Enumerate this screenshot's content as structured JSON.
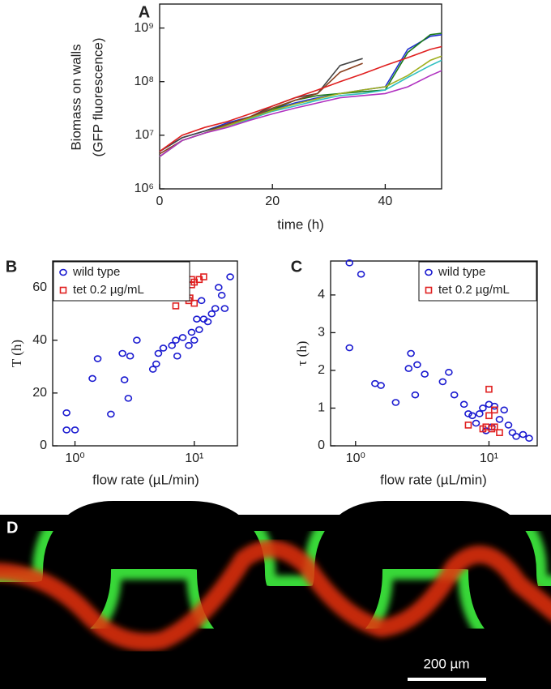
{
  "chart_data": [
    {
      "type": "line",
      "panel_label": "A",
      "ylabel": [
        "Biomass on walls",
        "(GFP fluorescence)"
      ],
      "xlabel": "time (h)",
      "yscale": "log",
      "grid": false,
      "x": [
        0,
        4,
        8,
        12,
        16,
        20,
        24,
        28,
        32,
        36,
        40,
        44,
        48,
        50
      ],
      "xlim": [
        0,
        50
      ],
      "xticks": [
        0,
        20,
        40
      ],
      "ylim": [
        1000000,
        2800000000
      ],
      "yticks": [
        {
          "value": 1000000,
          "label": "10⁶"
        },
        {
          "value": 10000000,
          "label": "10⁷"
        },
        {
          "value": 100000000,
          "label": "10⁸"
        },
        {
          "value": 1000000000,
          "label": "10⁹"
        }
      ],
      "series": [
        {
          "color": "#2030d0",
          "values": [
            5000000,
            9000000,
            12000000,
            17000000,
            22000000,
            30000000,
            40000000,
            50000000,
            60000000,
            70000000,
            80000000,
            400000000,
            700000000,
            750000000
          ]
        },
        {
          "color": "#1a7a1a",
          "values": [
            4000000,
            8000000,
            11000000,
            15000000,
            20000000,
            30000000,
            45000000,
            55000000,
            60000000,
            65000000,
            70000000,
            350000000,
            750000000,
            800000000
          ]
        },
        {
          "color": "#444444",
          "values": [
            5000000,
            9000000,
            12000000,
            16000000,
            22000000,
            35000000,
            50000000,
            60000000,
            200000000,
            270000000,
            null,
            null,
            null,
            null
          ]
        },
        {
          "color": "#8a4020",
          "values": [
            4500000,
            8000000,
            11000000,
            16000000,
            22000000,
            32000000,
            45000000,
            60000000,
            150000000,
            220000000,
            null,
            null,
            null,
            null
          ]
        },
        {
          "color": "#e02020",
          "values": [
            5000000,
            10000000,
            14000000,
            18000000,
            25000000,
            35000000,
            50000000,
            70000000,
            100000000,
            140000000,
            200000000,
            280000000,
            400000000,
            450000000
          ]
        },
        {
          "color": "#30c0c0",
          "values": [
            4000000,
            8000000,
            11000000,
            15000000,
            20000000,
            28000000,
            35000000,
            45000000,
            55000000,
            60000000,
            70000000,
            120000000,
            200000000,
            250000000
          ]
        },
        {
          "color": "#a0b020",
          "values": [
            4000000,
            8000000,
            11000000,
            15000000,
            21000000,
            29000000,
            38000000,
            48000000,
            60000000,
            70000000,
            80000000,
            130000000,
            250000000,
            300000000
          ]
        },
        {
          "color": "#b030c0",
          "values": [
            4000000,
            8000000,
            11000000,
            14000000,
            19000000,
            25000000,
            32000000,
            40000000,
            50000000,
            55000000,
            60000000,
            80000000,
            130000000,
            160000000
          ]
        }
      ]
    },
    {
      "type": "scatter",
      "panel_label": "B",
      "ylabel": "T (h)",
      "xlabel": "flow rate (µL/min)",
      "xscale": "log",
      "grid": false,
      "legend": "upper left",
      "xlim": [
        0.65,
        23
      ],
      "xticks": [
        {
          "value": 1,
          "label": "10⁰"
        },
        {
          "value": 10,
          "label": "10¹"
        }
      ],
      "ylim": [
        0,
        70
      ],
      "yticks": [
        0,
        20,
        40,
        60
      ],
      "series": [
        {
          "name": "wild type",
          "color": "#1a1ad0",
          "marker": "circle",
          "x": [
            0.85,
            0.85,
            1.0,
            1.4,
            1.55,
            2.0,
            2.5,
            2.6,
            2.8,
            2.9,
            3.3,
            4.5,
            4.8,
            5.0,
            5.5,
            6.5,
            7,
            7.2,
            8,
            9,
            9.5,
            10,
            10.5,
            11,
            11.5,
            12,
            13,
            14,
            15,
            16,
            17,
            18,
            20
          ],
          "values": [
            6,
            12.5,
            6,
            25.5,
            33,
            12,
            35,
            25,
            18,
            34,
            40,
            29,
            31,
            35,
            37,
            38,
            40,
            34,
            41,
            38,
            43,
            40,
            48,
            44,
            55,
            48,
            47,
            50,
            52,
            60,
            57,
            52,
            64
          ]
        },
        {
          "name": "tet 0.2 µg/mL",
          "color": "#e02020",
          "marker": "square",
          "x": [
            7,
            9,
            9.2,
            9.5,
            9.5,
            10,
            10,
            11,
            12
          ],
          "values": [
            53,
            55,
            56,
            61,
            63,
            54,
            62,
            63,
            64
          ]
        }
      ]
    },
    {
      "type": "scatter",
      "panel_label": "C",
      "ylabel": "τ (h)",
      "xlabel": "flow rate (µL/min)",
      "xscale": "log",
      "grid": false,
      "legend": "upper right",
      "xlim": [
        0.65,
        23
      ],
      "xticks": [
        {
          "value": 1,
          "label": "10⁰"
        },
        {
          "value": 10,
          "label": "10¹"
        }
      ],
      "ylim": [
        0,
        4.9
      ],
      "yticks": [
        0,
        1,
        2,
        3,
        4
      ],
      "series": [
        {
          "name": "wild type",
          "color": "#1a1ad0",
          "marker": "circle",
          "x": [
            0.9,
            1.1,
            0.9,
            1.4,
            1.55,
            2.0,
            2.5,
            2.6,
            2.8,
            2.9,
            3.3,
            4.5,
            5,
            5.5,
            6.5,
            7,
            7.5,
            8,
            8.5,
            9,
            9.5,
            10,
            10.5,
            11,
            12,
            13,
            14,
            15,
            16,
            18,
            20
          ],
          "values": [
            4.85,
            4.55,
            2.6,
            1.65,
            1.6,
            1.15,
            2.05,
            2.45,
            1.35,
            2.15,
            1.9,
            1.7,
            1.95,
            1.35,
            1.1,
            0.85,
            0.8,
            0.6,
            0.85,
            1.0,
            0.4,
            1.1,
            0.5,
            1.05,
            0.7,
            0.95,
            0.55,
            0.35,
            0.25,
            0.3,
            0.2
          ]
        },
        {
          "name": "tet 0.2 µg/mL",
          "color": "#e02020",
          "marker": "square",
          "x": [
            7,
            9,
            9.5,
            10,
            10,
            10.5,
            11,
            11,
            12
          ],
          "values": [
            0.55,
            0.45,
            0.5,
            1.5,
            0.8,
            0.45,
            0.95,
            0.5,
            0.35
          ]
        }
      ]
    }
  ],
  "image_panel": {
    "label": "D",
    "scale_bar": "200 µm"
  }
}
